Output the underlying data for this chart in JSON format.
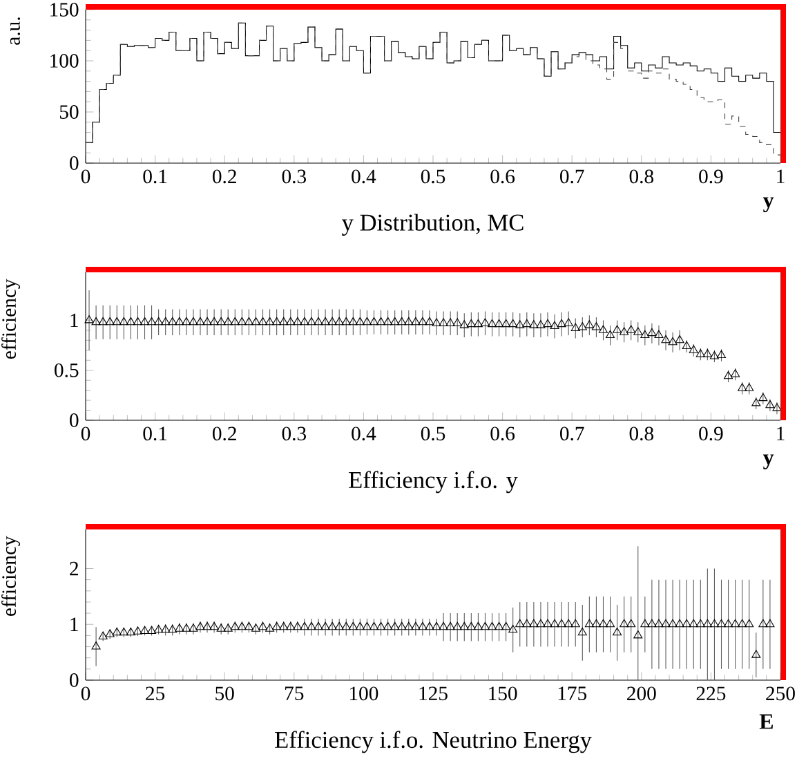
{
  "chart_data": [
    {
      "type": "histogram",
      "title": "y Distribution, MC",
      "xlabel": "y",
      "ylabel": "a.u.",
      "bins": [
        0,
        0.01,
        0.02,
        0.03,
        0.04,
        0.05,
        0.06,
        0.07,
        0.08,
        0.09,
        0.1,
        0.11,
        0.12,
        0.13,
        0.14,
        0.15,
        0.16,
        0.17,
        0.18,
        0.19,
        0.2,
        0.21,
        0.22,
        0.23,
        0.24,
        0.25,
        0.26,
        0.27,
        0.28,
        0.29,
        0.3,
        0.31,
        0.32,
        0.33,
        0.34,
        0.35,
        0.36,
        0.37,
        0.38,
        0.39,
        0.4,
        0.41,
        0.42,
        0.43,
        0.44,
        0.45,
        0.46,
        0.47,
        0.48,
        0.49,
        0.5,
        0.51,
        0.52,
        0.53,
        0.54,
        0.55,
        0.56,
        0.57,
        0.58,
        0.59,
        0.6,
        0.61,
        0.62,
        0.63,
        0.64,
        0.65,
        0.66,
        0.67,
        0.68,
        0.69,
        0.7,
        0.71,
        0.72,
        0.73,
        0.74,
        0.75,
        0.76,
        0.77,
        0.78,
        0.79,
        0.8,
        0.81,
        0.82,
        0.83,
        0.84,
        0.85,
        0.86,
        0.87,
        0.88,
        0.89,
        0.9,
        0.91,
        0.92,
        0.93,
        0.94,
        0.95,
        0.96,
        0.97,
        0.98,
        0.99,
        1
      ],
      "series": [
        {
          "color": "#000000",
          "line_style": "solid",
          "values": [
            20,
            40,
            72,
            78,
            86,
            116,
            114,
            115,
            115,
            113,
            122,
            120,
            128,
            110,
            110,
            122,
            100,
            128,
            122,
            107,
            118,
            112,
            137,
            105,
            105,
            120,
            134,
            100,
            112,
            100,
            117,
            118,
            133,
            113,
            100,
            106,
            131,
            100,
            114,
            110,
            88,
            124,
            124,
            100,
            119,
            108,
            104,
            102,
            114,
            102,
            118,
            128,
            98,
            100,
            119,
            103,
            116,
            120,
            100,
            100,
            125,
            110,
            112,
            106,
            113,
            102,
            85,
            109,
            92,
            98,
            106,
            108,
            106,
            100,
            104,
            92,
            124,
            115,
            93,
            98,
            90,
            96,
            93,
            104,
            98,
            96,
            98,
            95,
            90,
            92,
            88,
            80,
            93,
            85,
            80,
            86,
            83,
            88,
            80,
            30
          ]
        },
        {
          "color": "#404040",
          "line_style": "dashed",
          "values": [
            20,
            40,
            72,
            78,
            86,
            116,
            114,
            115,
            115,
            113,
            122,
            120,
            128,
            110,
            110,
            122,
            100,
            128,
            122,
            107,
            118,
            112,
            137,
            105,
            105,
            120,
            134,
            100,
            112,
            100,
            117,
            118,
            133,
            113,
            100,
            106,
            131,
            100,
            114,
            110,
            88,
            124,
            124,
            100,
            119,
            108,
            104,
            102,
            114,
            102,
            118,
            128,
            98,
            100,
            119,
            103,
            116,
            120,
            100,
            100,
            125,
            110,
            112,
            106,
            113,
            102,
            85,
            109,
            92,
            98,
            104,
            106,
            100,
            96,
            92,
            82,
            118,
            112,
            90,
            88,
            83,
            90,
            88,
            92,
            82,
            80,
            77,
            72,
            64,
            60,
            60,
            62,
            38,
            46,
            36,
            28,
            26,
            20,
            18,
            8
          ]
        }
      ],
      "xlim": [
        0,
        1
      ],
      "ylim": [
        0,
        150
      ],
      "xticks": [
        0,
        0.1,
        0.2,
        0.3,
        0.4,
        0.5,
        0.6,
        0.7,
        0.8,
        0.9,
        1
      ],
      "yticks": [
        0,
        50,
        100,
        150
      ]
    },
    {
      "type": "scatter",
      "title": "Efficiency i.f.o. y",
      "xlabel": "y",
      "ylabel": "efficiency",
      "marker": "triangle",
      "series": [
        {
          "color": "#000000",
          "x": [
            0.005,
            0.015,
            0.025,
            0.035,
            0.045,
            0.055,
            0.065,
            0.075,
            0.085,
            0.095,
            0.105,
            0.115,
            0.125,
            0.135,
            0.145,
            0.155,
            0.165,
            0.175,
            0.185,
            0.195,
            0.205,
            0.215,
            0.225,
            0.235,
            0.245,
            0.255,
            0.265,
            0.275,
            0.285,
            0.295,
            0.305,
            0.315,
            0.325,
            0.335,
            0.345,
            0.355,
            0.365,
            0.375,
            0.385,
            0.395,
            0.405,
            0.415,
            0.425,
            0.435,
            0.445,
            0.455,
            0.465,
            0.475,
            0.485,
            0.495,
            0.505,
            0.515,
            0.525,
            0.535,
            0.545,
            0.555,
            0.565,
            0.575,
            0.585,
            0.595,
            0.605,
            0.615,
            0.625,
            0.635,
            0.645,
            0.655,
            0.665,
            0.675,
            0.685,
            0.695,
            0.705,
            0.715,
            0.725,
            0.735,
            0.745,
            0.755,
            0.765,
            0.775,
            0.785,
            0.795,
            0.805,
            0.815,
            0.825,
            0.835,
            0.845,
            0.855,
            0.865,
            0.875,
            0.885,
            0.895,
            0.905,
            0.915,
            0.925,
            0.935,
            0.945,
            0.955,
            0.965,
            0.975,
            0.985,
            0.995
          ],
          "values": [
            1.0,
            0.98,
            0.98,
            0.98,
            0.98,
            0.98,
            0.98,
            0.98,
            0.98,
            0.98,
            0.98,
            0.98,
            0.98,
            0.98,
            0.98,
            0.98,
            0.98,
            0.98,
            0.98,
            0.98,
            0.98,
            0.98,
            0.98,
            0.98,
            0.98,
            0.98,
            0.98,
            0.98,
            0.98,
            0.98,
            0.98,
            0.98,
            0.98,
            0.98,
            0.98,
            0.98,
            0.98,
            0.98,
            0.98,
            0.98,
            0.98,
            0.98,
            0.98,
            0.98,
            0.98,
            0.98,
            0.98,
            0.98,
            0.98,
            0.98,
            0.97,
            0.97,
            0.97,
            0.97,
            0.95,
            0.96,
            0.96,
            0.97,
            0.96,
            0.96,
            0.96,
            0.96,
            0.95,
            0.96,
            0.95,
            0.95,
            0.96,
            0.94,
            0.96,
            0.97,
            0.92,
            0.93,
            0.95,
            0.93,
            0.9,
            0.85,
            0.9,
            0.88,
            0.9,
            0.88,
            0.85,
            0.87,
            0.85,
            0.8,
            0.78,
            0.8,
            0.74,
            0.7,
            0.66,
            0.66,
            0.64,
            0.65,
            0.44,
            0.46,
            0.32,
            0.32,
            0.17,
            0.22,
            0.15,
            0.12
          ],
          "errors": [
            0.3,
            0.17,
            0.17,
            0.17,
            0.17,
            0.17,
            0.17,
            0.17,
            0.17,
            0.17,
            0.13,
            0.13,
            0.13,
            0.13,
            0.13,
            0.13,
            0.13,
            0.13,
            0.13,
            0.13,
            0.13,
            0.13,
            0.13,
            0.13,
            0.13,
            0.13,
            0.13,
            0.13,
            0.13,
            0.13,
            0.13,
            0.13,
            0.13,
            0.13,
            0.13,
            0.13,
            0.13,
            0.13,
            0.13,
            0.13,
            0.12,
            0.12,
            0.12,
            0.12,
            0.12,
            0.12,
            0.12,
            0.12,
            0.12,
            0.12,
            0.12,
            0.12,
            0.12,
            0.12,
            0.12,
            0.12,
            0.12,
            0.12,
            0.12,
            0.12,
            0.12,
            0.12,
            0.12,
            0.12,
            0.12,
            0.12,
            0.12,
            0.12,
            0.12,
            0.12,
            0.1,
            0.1,
            0.1,
            0.1,
            0.1,
            0.1,
            0.1,
            0.1,
            0.1,
            0.1,
            0.1,
            0.1,
            0.1,
            0.1,
            0.1,
            0.1,
            0.06,
            0.06,
            0.06,
            0.06,
            0.06,
            0.06,
            0.06,
            0.06,
            0.06,
            0.06,
            0.06,
            0.06,
            0.06,
            0.06
          ]
        }
      ],
      "xlim": [
        0,
        1
      ],
      "ylim": [
        0,
        1.48
      ],
      "xticks": [
        0,
        0.1,
        0.2,
        0.3,
        0.4,
        0.5,
        0.6,
        0.7,
        0.8,
        0.9,
        1
      ],
      "yticks": [
        0,
        0.5,
        1
      ]
    },
    {
      "type": "scatter",
      "title": "Efficiency i.f.o. Neutrino Energy",
      "xlabel": "E",
      "ylabel": "efficiency",
      "marker": "triangle",
      "series": [
        {
          "color": "#000000",
          "x": [
            3.75,
            6.25,
            8.75,
            11.25,
            13.75,
            16.25,
            18.75,
            21.25,
            23.75,
            26.25,
            28.75,
            31.25,
            33.75,
            36.25,
            38.75,
            41.25,
            43.75,
            46.25,
            48.75,
            51.25,
            53.75,
            56.25,
            58.75,
            61.25,
            63.75,
            66.25,
            68.75,
            71.25,
            73.75,
            76.25,
            78.75,
            81.25,
            83.75,
            86.25,
            88.75,
            91.25,
            93.75,
            96.25,
            98.75,
            101.25,
            103.75,
            106.25,
            108.75,
            111.25,
            113.75,
            116.25,
            118.75,
            121.25,
            123.75,
            126.25,
            128.75,
            131.25,
            133.75,
            136.25,
            138.75,
            141.25,
            143.75,
            146.25,
            148.75,
            151.25,
            153.75,
            156.25,
            158.75,
            161.25,
            163.75,
            166.25,
            168.75,
            171.25,
            173.75,
            176.25,
            178.75,
            181.25,
            183.75,
            186.25,
            188.75,
            191.25,
            193.75,
            196.25,
            198.75,
            201.25,
            203.75,
            206.25,
            208.75,
            211.25,
            213.75,
            216.25,
            218.75,
            221.25,
            223.75,
            226.25,
            228.75,
            231.25,
            233.75,
            236.25,
            238.75,
            241.25,
            243.75,
            246.25
          ],
          "values": [
            0.6,
            0.78,
            0.82,
            0.85,
            0.85,
            0.85,
            0.87,
            0.88,
            0.88,
            0.9,
            0.9,
            0.9,
            0.92,
            0.92,
            0.92,
            0.95,
            0.95,
            0.95,
            0.92,
            0.92,
            0.95,
            0.95,
            0.95,
            0.92,
            0.95,
            0.92,
            0.95,
            0.95,
            0.95,
            0.95,
            0.95,
            0.95,
            0.95,
            0.95,
            0.95,
            0.95,
            0.95,
            0.95,
            0.95,
            0.95,
            0.95,
            0.95,
            0.95,
            0.95,
            0.95,
            0.95,
            0.95,
            0.95,
            0.95,
            0.95,
            0.95,
            0.95,
            0.95,
            0.95,
            0.95,
            0.95,
            0.95,
            0.95,
            0.95,
            0.95,
            0.9,
            1,
            1,
            1,
            1,
            1,
            1,
            1,
            1,
            1,
            0.85,
            1,
            1,
            1,
            1,
            0.85,
            1,
            1,
            0.8,
            1,
            1,
            1,
            1,
            1,
            1,
            1,
            1,
            1,
            1,
            1,
            1,
            1,
            1,
            1,
            1,
            0.45,
            1,
            1
          ],
          "errors": [
            0.35,
            0.08,
            0.08,
            0.08,
            0.08,
            0.08,
            0.08,
            0.08,
            0.08,
            0.08,
            0.1,
            0.1,
            0.1,
            0.1,
            0.1,
            0.1,
            0.1,
            0.1,
            0.1,
            0.1,
            0.1,
            0.1,
            0.1,
            0.1,
            0.1,
            0.1,
            0.1,
            0.1,
            0.1,
            0.1,
            0.15,
            0.15,
            0.15,
            0.15,
            0.15,
            0.15,
            0.15,
            0.15,
            0.15,
            0.15,
            0.15,
            0.15,
            0.15,
            0.15,
            0.15,
            0.15,
            0.15,
            0.15,
            0.15,
            0.15,
            0.25,
            0.25,
            0.25,
            0.25,
            0.25,
            0.25,
            0.25,
            0.25,
            0.25,
            0.25,
            0.4,
            0.4,
            0.4,
            0.4,
            0.4,
            0.4,
            0.4,
            0.4,
            0.4,
            0.4,
            0.5,
            0.5,
            0.5,
            0.5,
            0.5,
            0.5,
            0.5,
            0.5,
            [
              0,
              2.4
            ],
            0.5,
            0.8,
            0.8,
            0.8,
            0.8,
            0.8,
            0.8,
            0.8,
            0.8,
            [
              0,
              2
            ],
            [
              0,
              2
            ],
            0.8,
            0.8,
            0.8,
            0.8,
            0.8,
            0.4,
            0.8,
            0.8
          ]
        }
      ],
      "xlim": [
        0,
        250
      ],
      "ylim": [
        0,
        2.7
      ],
      "xticks": [
        0,
        25,
        50,
        75,
        100,
        125,
        150,
        175,
        200,
        225,
        250
      ],
      "yticks": [
        0,
        1,
        2
      ]
    }
  ]
}
